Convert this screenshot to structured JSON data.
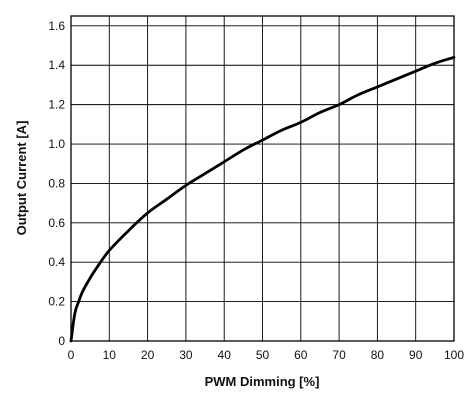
{
  "chart_data": {
    "type": "line",
    "title": "",
    "xlabel": "PWM Dimming [%]",
    "ylabel": "Output Current [A]",
    "xlim": [
      0,
      100
    ],
    "ylim": [
      0,
      1.65
    ],
    "x_ticks": [
      "0",
      "10",
      "20",
      "30",
      "40",
      "50",
      "60",
      "70",
      "80",
      "90",
      "100"
    ],
    "y_ticks": [
      "0",
      "0.2",
      "0.4",
      "0.6",
      "0.8",
      "1.0",
      "1.2",
      "1.4",
      "1.6"
    ],
    "grid": true,
    "legend": "none",
    "series": [
      {
        "color": "#000000",
        "x": [
          0,
          1,
          2,
          3,
          5,
          7,
          10,
          15,
          20,
          25,
          30,
          35,
          40,
          45,
          50,
          55,
          60,
          65,
          70,
          75,
          80,
          85,
          90,
          95,
          100
        ],
        "y": [
          0,
          0.14,
          0.2,
          0.25,
          0.32,
          0.38,
          0.46,
          0.56,
          0.65,
          0.72,
          0.79,
          0.85,
          0.91,
          0.97,
          1.02,
          1.07,
          1.11,
          1.16,
          1.2,
          1.25,
          1.29,
          1.33,
          1.37,
          1.41,
          1.44
        ]
      }
    ]
  }
}
